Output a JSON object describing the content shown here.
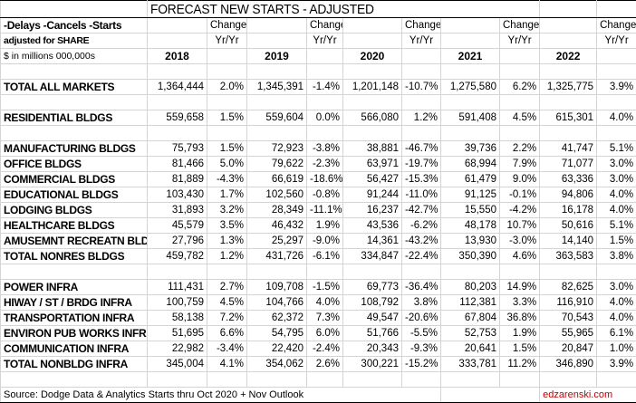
{
  "title": "FORECAST NEW STARTS - ADJUSTED",
  "header": {
    "line1": "-Delays -Cancels -Starts",
    "line2": "adjusted for SHARE",
    "line3": "$ in millions 000,000s",
    "change_label": "Change",
    "yoy_label": "Yr/Yr",
    "years": [
      "2018",
      "2019",
      "2020",
      "2021",
      "2022"
    ]
  },
  "rows": [
    {
      "type": "blank"
    },
    {
      "label": "TOTAL ALL MARKETS",
      "values": [
        "1,364,444",
        "1,345,391",
        "1,201,148",
        "1,275,580",
        "1,325,775"
      ],
      "changes": [
        "2.0%",
        "-1.4%",
        "-10.7%",
        "6.2%",
        "3.9%"
      ]
    },
    {
      "type": "blank"
    },
    {
      "label": "RESIDENTIAL BLDGS",
      "values": [
        "559,658",
        "559,604",
        "566,080",
        "591,408",
        "615,301"
      ],
      "changes": [
        "1.5%",
        "0.0%",
        "1.2%",
        "4.5%",
        "4.0%"
      ]
    },
    {
      "type": "blank"
    },
    {
      "label": "MANUFACTURING BLDGS",
      "values": [
        "75,793",
        "72,923",
        "38,881",
        "39,736",
        "41,747"
      ],
      "changes": [
        "1.5%",
        "-3.8%",
        "-46.7%",
        "2.2%",
        "5.1%"
      ]
    },
    {
      "label": "OFFICE BLDGS",
      "values": [
        "81,466",
        "79,622",
        "63,971",
        "68,994",
        "71,077"
      ],
      "changes": [
        "5.0%",
        "-2.3%",
        "-19.7%",
        "7.9%",
        "3.0%"
      ]
    },
    {
      "label": "COMMERCIAL BLDGS",
      "values": [
        "81,889",
        "66,619",
        "56,427",
        "61,479",
        "63,336"
      ],
      "changes": [
        "-4.3%",
        "-18.6%",
        "-15.3%",
        "9.0%",
        "3.0%"
      ]
    },
    {
      "label": "EDUCATIONAL BLDGS",
      "values": [
        "103,430",
        "102,560",
        "91,244",
        "91,125",
        "94,806"
      ],
      "changes": [
        "1.7%",
        "-0.8%",
        "-11.0%",
        "-0.1%",
        "4.0%"
      ]
    },
    {
      "label": "LODGING BLDGS",
      "values": [
        "31,893",
        "28,349",
        "16,237",
        "15,550",
        "16,178"
      ],
      "changes": [
        "3.2%",
        "-11.1%",
        "-42.7%",
        "-4.2%",
        "4.0%"
      ]
    },
    {
      "label": "HEALTHCARE BLDGS",
      "values": [
        "45,579",
        "46,432",
        "43,536",
        "48,178",
        "50,616"
      ],
      "changes": [
        "3.5%",
        "1.9%",
        "-6.2%",
        "10.7%",
        "5.1%"
      ]
    },
    {
      "label": "AMUSEMNT RECREATN BLDG",
      "values": [
        "27,796",
        "25,297",
        "14,361",
        "13,930",
        "14,140"
      ],
      "changes": [
        "1.3%",
        "-9.0%",
        "-43.2%",
        "-3.0%",
        "1.5%"
      ]
    },
    {
      "label": "TOTAL NONRES BLDGS",
      "values": [
        "459,782",
        "431,726",
        "334,847",
        "350,390",
        "363,583"
      ],
      "changes": [
        "1.2%",
        "-6.1%",
        "-22.4%",
        "4.6%",
        "3.8%"
      ]
    },
    {
      "type": "blank"
    },
    {
      "label": "POWER INFRA",
      "values": [
        "111,431",
        "109,708",
        "69,773",
        "80,203",
        "82,625"
      ],
      "changes": [
        "2.7%",
        "-1.5%",
        "-36.4%",
        "14.9%",
        "3.0%"
      ]
    },
    {
      "label": "HIWAY / ST / BRDG INFRA",
      "values": [
        "100,759",
        "104,766",
        "108,792",
        "112,381",
        "116,910"
      ],
      "changes": [
        "4.5%",
        "4.0%",
        "3.8%",
        "3.3%",
        "4.0%"
      ]
    },
    {
      "label": "TRANSPORTATION INFRA",
      "values": [
        "58,138",
        "62,372",
        "49,547",
        "67,804",
        "70,543"
      ],
      "changes": [
        "7.2%",
        "7.3%",
        "-20.6%",
        "36.8%",
        "4.0%"
      ]
    },
    {
      "label": "ENVIRON PUB WORKS INFRA",
      "values": [
        "51,695",
        "54,795",
        "51,766",
        "52,753",
        "55,965"
      ],
      "changes": [
        "6.6%",
        "6.0%",
        "-5.5%",
        "1.9%",
        "6.1%"
      ]
    },
    {
      "label": "COMMUNICATION INFRA",
      "values": [
        "22,982",
        "22,420",
        "20,343",
        "20,641",
        "20,847"
      ],
      "changes": [
        "-3.4%",
        "-2.4%",
        "-9.3%",
        "1.5%",
        "1.0%"
      ]
    },
    {
      "label": "TOTAL NONBLDG INFRA",
      "values": [
        "345,004",
        "354,062",
        "300,221",
        "333,781",
        "346,890"
      ],
      "changes": [
        "4.1%",
        "2.6%",
        "-15.2%",
        "11.2%",
        "3.9%"
      ]
    },
    {
      "type": "blank"
    }
  ],
  "footer": {
    "source": "Source: Dodge Data & Analytics Starts thru Oct 2020 + Nov Outlook",
    "site": "edzarenski.com"
  }
}
